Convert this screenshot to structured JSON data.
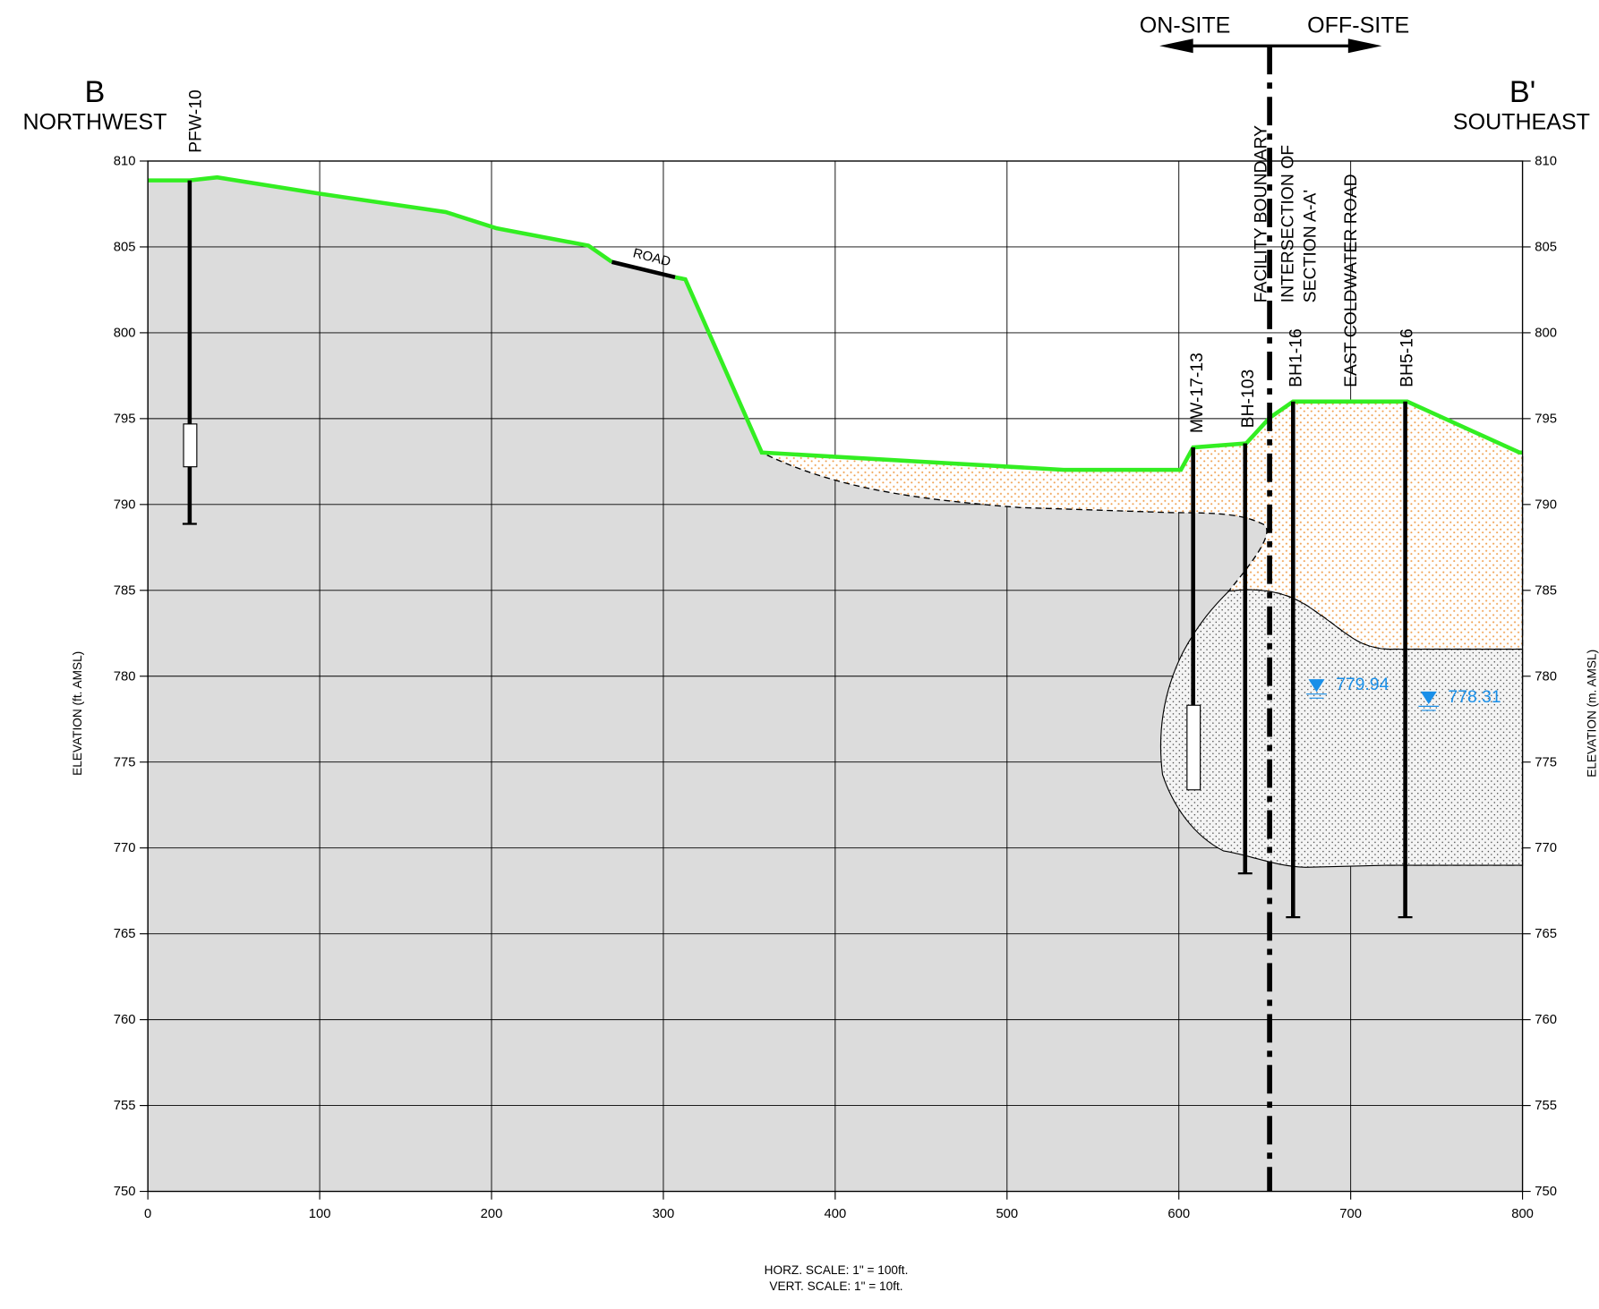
{
  "header": {
    "on_site": "ON-SITE",
    "off_site": "OFF-SITE",
    "left_id": "B",
    "left_dir": "NORTHWEST",
    "right_id": "B'",
    "right_dir": "SOUTHEAST"
  },
  "axes": {
    "xlim": [
      0,
      800
    ],
    "xticks": [
      0,
      100,
      200,
      300,
      400,
      500,
      600,
      700,
      800
    ],
    "ylim": [
      750,
      810
    ],
    "yticks": [
      750,
      755,
      760,
      765,
      770,
      775,
      780,
      785,
      790,
      795,
      800,
      805,
      810
    ],
    "y_label": "ELEVATION (ft. AMSL)",
    "y2_label": "ELEVATION (m. AMSL)"
  },
  "wells": [
    "PFW-10",
    "MW-17-13",
    "BH-103",
    "BH1-16",
    "BH5-16"
  ],
  "features": {
    "road": "ROAD",
    "boundary": "FACILITY BOUNDARY",
    "intersection_1": "INTERSECTION OF",
    "intersection_2": "SECTION A-A'",
    "street": "EAST COLDWATER ROAD"
  },
  "water_levels": [
    779.94,
    778.31
  ],
  "footer": {
    "horz": "HORZ. SCALE: 1\" = 100ft.",
    "vert": "VERT. SCALE: 1\" = 10ft."
  }
}
